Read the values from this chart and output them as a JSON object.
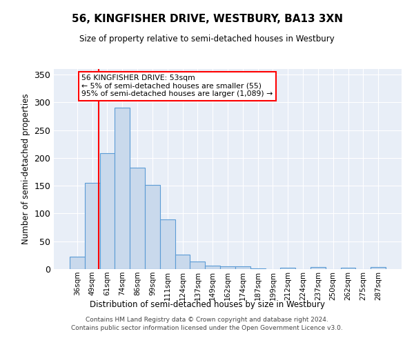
{
  "title": "56, KINGFISHER DRIVE, WESTBURY, BA13 3XN",
  "subtitle": "Size of property relative to semi-detached houses in Westbury",
  "xlabel": "Distribution of semi-detached houses by size in Westbury",
  "ylabel": "Number of semi-detached properties",
  "bin_labels": [
    "36sqm",
    "49sqm",
    "61sqm",
    "74sqm",
    "86sqm",
    "99sqm",
    "111sqm",
    "124sqm",
    "137sqm",
    "149sqm",
    "162sqm",
    "174sqm",
    "187sqm",
    "199sqm",
    "212sqm",
    "224sqm",
    "237sqm",
    "250sqm",
    "262sqm",
    "275sqm",
    "287sqm"
  ],
  "bar_heights": [
    22,
    155,
    209,
    290,
    183,
    152,
    90,
    26,
    14,
    6,
    5,
    5,
    1,
    0,
    3,
    0,
    4,
    0,
    3,
    0,
    4
  ],
  "bar_color": "#c9d9ec",
  "bar_edge_color": "#5b9bd5",
  "background_color": "#e8eef7",
  "annotation_text": "56 KINGFISHER DRIVE: 53sqm\n← 5% of semi-detached houses are smaller (55)\n95% of semi-detached houses are larger (1,089) →",
  "annotation_box_color": "white",
  "annotation_box_edge_color": "red",
  "ylim": [
    0,
    360
  ],
  "yticks": [
    0,
    50,
    100,
    150,
    200,
    250,
    300,
    350
  ],
  "red_line_x": 1.45,
  "footer_line1": "Contains HM Land Registry data © Crown copyright and database right 2024.",
  "footer_line2": "Contains public sector information licensed under the Open Government Licence v3.0."
}
